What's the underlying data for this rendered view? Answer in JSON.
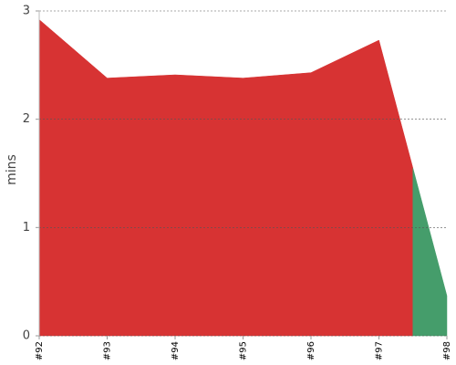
{
  "chart_data": {
    "type": "area",
    "y_label": "mins",
    "categories": [
      "#92",
      "#93",
      "#94",
      "#95",
      "#96",
      "#97",
      "#98"
    ],
    "values": [
      2.92,
      2.38,
      2.41,
      2.38,
      2.43,
      2.73,
      0.37
    ],
    "point_colors": [
      "#d73333",
      "#d73333",
      "#d73333",
      "#d73333",
      "#d73333",
      "#d73333",
      "#459d6b"
    ],
    "ylim": [
      0,
      3
    ],
    "yticks": [
      0,
      1,
      2,
      3
    ],
    "grid": true
  }
}
